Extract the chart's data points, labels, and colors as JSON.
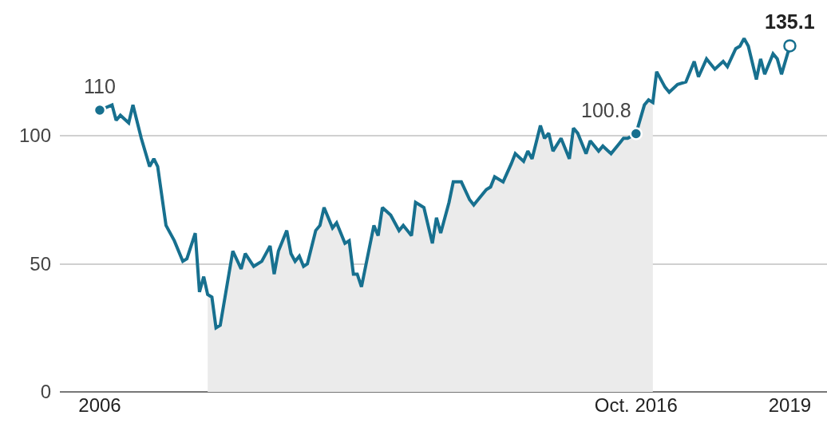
{
  "chart_data": {
    "type": "line",
    "xlim": [
      "2005-03-15",
      "2020-07-30"
    ],
    "ylim": [
      0,
      153
    ],
    "xticks": [
      {
        "value": "2006-01",
        "label": "2006"
      },
      {
        "value": "2016-10",
        "label": "Oct. 2016"
      },
      {
        "value": "2019-11",
        "label": "2019"
      }
    ],
    "yticks": [
      0,
      50,
      100
    ],
    "grid": "y",
    "line_style": "solid",
    "series": [
      {
        "type": "area",
        "color": "#ebebeb",
        "x": [
          "2008-03",
          "2008-04",
          "2008-05",
          "2008-06",
          "2008-09",
          "2008-11",
          "2008-12",
          "2009-02",
          "2009-04",
          "2009-06",
          "2009-07",
          "2009-08",
          "2009-10",
          "2009-11",
          "2009-12",
          "2010-01",
          "2010-02",
          "2010-03",
          "2010-05",
          "2010-06",
          "2010-07",
          "2010-09",
          "2010-10",
          "2010-12",
          "2011-01",
          "2011-02",
          "2011-03",
          "2011-04",
          "2011-07",
          "2011-08",
          "2011-09",
          "2011-11",
          "2012-01",
          "2012-02",
          "2012-04",
          "2012-05",
          "2012-07",
          "2012-09",
          "2012-10",
          "2012-11",
          "2013-01",
          "2013-02",
          "2013-04",
          "2013-06",
          "2013-07",
          "2013-10",
          "2013-11",
          "2013-12",
          "2014-02",
          "2014-04",
          "2014-05",
          "2014-07",
          "2014-08",
          "2014-09",
          "2014-11",
          "2014-12",
          "2015-01",
          "2015-02",
          "2015-04",
          "2015-06",
          "2015-07",
          "2015-08",
          "2015-10",
          "2015-11",
          "2016-01",
          "2016-02",
          "2016-04",
          "2016-06",
          "2016-07",
          "2016-08",
          "2016-10",
          "2016-12",
          "2017-01",
          "2017-02"
        ],
        "values": [
          38,
          37,
          25,
          26,
          55,
          48,
          54,
          49,
          51,
          57,
          46,
          55,
          63,
          54,
          51,
          53,
          49,
          50,
          63,
          65,
          72,
          64,
          66,
          58,
          59,
          46,
          46,
          41,
          65,
          61,
          72,
          69,
          63,
          65,
          61,
          74,
          72,
          58,
          68,
          62,
          74,
          82,
          82,
          75,
          73,
          79,
          80,
          84,
          82,
          89,
          93,
          90,
          94,
          91,
          104,
          99,
          101,
          94,
          99,
          91,
          103,
          101,
          93,
          98,
          94,
          96,
          93,
          97,
          99,
          99,
          100.8,
          112,
          114,
          113
        ]
      },
      {
        "color": "#17708f",
        "x": [
          "2006-01",
          "2006-04",
          "2006-05",
          "2006-06",
          "2006-08",
          "2006-09",
          "2006-11",
          "2007-01",
          "2007-02",
          "2007-03",
          "2007-05",
          "2007-07",
          "2007-09",
          "2007-10",
          "2007-12",
          "2008-01",
          "2008-02",
          "2008-03",
          "2008-04",
          "2008-05",
          "2008-06",
          "2008-09",
          "2008-11",
          "2008-12",
          "2009-02",
          "2009-04",
          "2009-06",
          "2009-07",
          "2009-08",
          "2009-10",
          "2009-11",
          "2009-12",
          "2010-01",
          "2010-02",
          "2010-03",
          "2010-05",
          "2010-06",
          "2010-07",
          "2010-09",
          "2010-10",
          "2010-12",
          "2011-01",
          "2011-02",
          "2011-03",
          "2011-04",
          "2011-07",
          "2011-08",
          "2011-09",
          "2011-11",
          "2012-01",
          "2012-02",
          "2012-04",
          "2012-05",
          "2012-07",
          "2012-09",
          "2012-10",
          "2012-11",
          "2013-01",
          "2013-02",
          "2013-04",
          "2013-06",
          "2013-07",
          "2013-10",
          "2013-11",
          "2013-12",
          "2014-02",
          "2014-04",
          "2014-05",
          "2014-07",
          "2014-08",
          "2014-09",
          "2014-11",
          "2014-12",
          "2015-01",
          "2015-02",
          "2015-04",
          "2015-06",
          "2015-07",
          "2015-08",
          "2015-10",
          "2015-11",
          "2016-01",
          "2016-02",
          "2016-04",
          "2016-06",
          "2016-07",
          "2016-08",
          "2016-10",
          "2016-12",
          "2017-01",
          "2017-02",
          "2017-03",
          "2017-05",
          "2017-06",
          "2017-08",
          "2017-10",
          "2017-12",
          "2018-01",
          "2018-03",
          "2018-05",
          "2018-07",
          "2018-08",
          "2018-10",
          "2018-11",
          "2018-12",
          "2019-01",
          "2019-03",
          "2019-04",
          "2019-05",
          "2019-07",
          "2019-08",
          "2019-09",
          "2019-11"
        ],
        "values": [
          110,
          112,
          106,
          108,
          105,
          112,
          99,
          88,
          91,
          88,
          65,
          59,
          51,
          52,
          62,
          39,
          45,
          38,
          37,
          25,
          26,
          55,
          48,
          54,
          49,
          51,
          57,
          46,
          55,
          63,
          54,
          51,
          53,
          49,
          50,
          63,
          65,
          72,
          64,
          66,
          58,
          59,
          46,
          46,
          41,
          65,
          61,
          72,
          69,
          63,
          65,
          61,
          74,
          72,
          58,
          68,
          62,
          74,
          82,
          82,
          75,
          73,
          79,
          80,
          84,
          82,
          89,
          93,
          90,
          94,
          91,
          104,
          99,
          101,
          94,
          99,
          91,
          103,
          101,
          93,
          98,
          94,
          96,
          93,
          97,
          99,
          99,
          100.8,
          112,
          114,
          113,
          125,
          119,
          117,
          120,
          121,
          129,
          123,
          130,
          126,
          129,
          127,
          134,
          135,
          138,
          135,
          122,
          130,
          124,
          132,
          130,
          124,
          135.1
        ]
      }
    ],
    "annotations": [
      {
        "text": "110",
        "x": "2006-01",
        "y": 110
      },
      {
        "text": "100.8",
        "x": "2016-10",
        "y": 100.8
      },
      {
        "text": "135.1",
        "x": "2019-11",
        "y": 135.1
      }
    ]
  }
}
